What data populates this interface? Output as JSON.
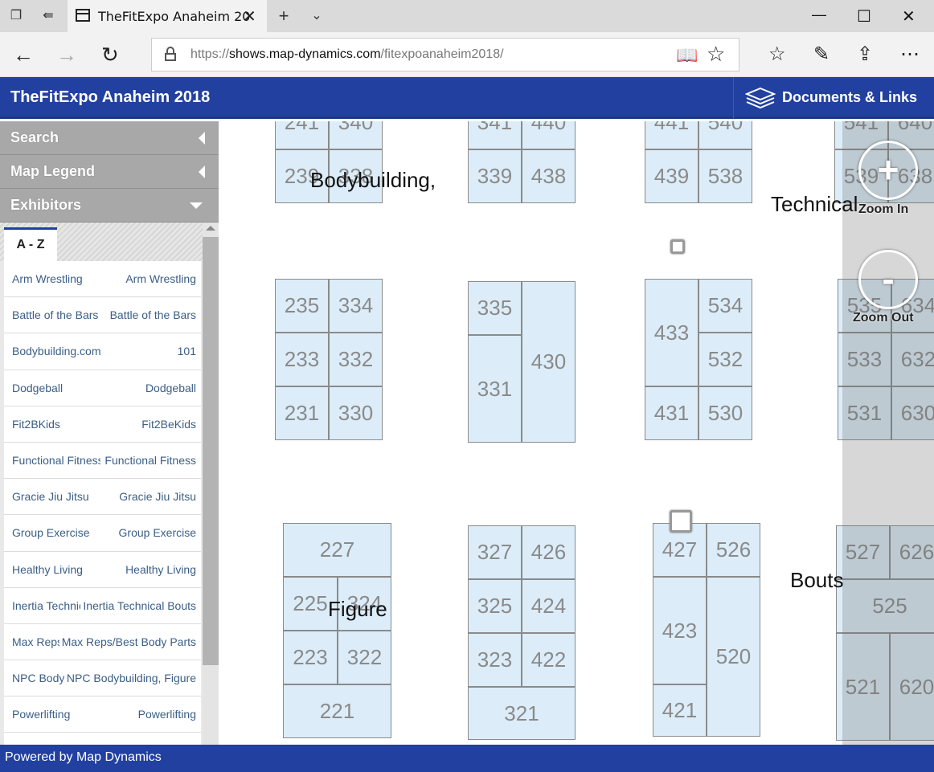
{
  "browser": {
    "tab_title": "TheFitExpo Anaheim 20",
    "url_prefix": "https://",
    "url_domain": "shows.map-dynamics.com",
    "url_path": "/fitexpoanaheim2018/"
  },
  "app": {
    "title": "TheFitExpo Anaheim 2018",
    "docs_label": "Documents & Links",
    "footer": "Powered by Map Dynamics",
    "accent": "#2240a0"
  },
  "sidebar": {
    "search": "Search",
    "legend": "Map Legend",
    "exhibitors": "Exhibitors",
    "az_tab": "A - Z",
    "items": [
      {
        "name": "Arm Wrestling",
        "location": "Arm Wrestling"
      },
      {
        "name": "Battle of the Bars",
        "location": "Battle of the Bars"
      },
      {
        "name": "Bodybuilding.com",
        "location": "101"
      },
      {
        "name": "Dodgeball",
        "location": "Dodgeball"
      },
      {
        "name": "Fit2BKids",
        "location": "Fit2BeKids"
      },
      {
        "name": "Functional Fitness",
        "location": "Functional Fitness"
      },
      {
        "name": "Gracie Jiu Jitsu",
        "location": "Gracie Jiu Jitsu"
      },
      {
        "name": "Group Exercise",
        "location": "Group Exercise"
      },
      {
        "name": "Healthy Living",
        "location": "Healthy Living"
      },
      {
        "name": "Inertia Technical Bouts",
        "location": "Inertia Technical Bouts"
      },
      {
        "name": "Max Reps/Best Body Parts",
        "location": "Max Reps/Best Body Parts"
      },
      {
        "name": "NPC Bodybuilding, Figure",
        "location": "NPC Bodybuilding, Figure"
      },
      {
        "name": "Powerlifting",
        "location": "Powerlifting"
      }
    ]
  },
  "map": {
    "zoom_in": "+",
    "zoom_in_label": "Zoom In",
    "zoom_out": "-",
    "zoom_out_label": "Zoom Out",
    "labels": {
      "bodybuilding": "Bodybuilding,",
      "technical": "Technical",
      "figure": "Figure",
      "bouts": "Bouts"
    },
    "booths": {
      "b241": "241",
      "b340": "340",
      "b239": "239",
      "b338": "338",
      "b341": "341",
      "b440": "440",
      "b339": "339",
      "b438": "438",
      "b441": "441",
      "b540": "540",
      "b439": "439",
      "b538": "538",
      "b541": "541",
      "b640": "640",
      "b539": "539",
      "b638": "638",
      "b235": "235",
      "b334": "334",
      "b233": "233",
      "b332": "332",
      "b231": "231",
      "b330": "330",
      "b335": "335",
      "b331": "331",
      "b430": "430",
      "b433": "433",
      "b534": "534",
      "b532": "532",
      "b431": "431",
      "b530": "530",
      "b535": "535",
      "b634": "634",
      "b533": "533",
      "b632": "632",
      "b531": "531",
      "b630": "630",
      "b227": "227",
      "b225": "225",
      "b324": "324",
      "b223": "223",
      "b322": "322",
      "b221": "221",
      "b327": "327",
      "b426": "426",
      "b325": "325",
      "b424": "424",
      "b323": "323",
      "b422": "422",
      "b321": "321",
      "b427": "427",
      "b526": "526",
      "b423": "423",
      "b520": "520",
      "b421": "421",
      "b527": "527",
      "b626": "626",
      "b525": "525",
      "b521": "521",
      "b620": "620"
    }
  }
}
